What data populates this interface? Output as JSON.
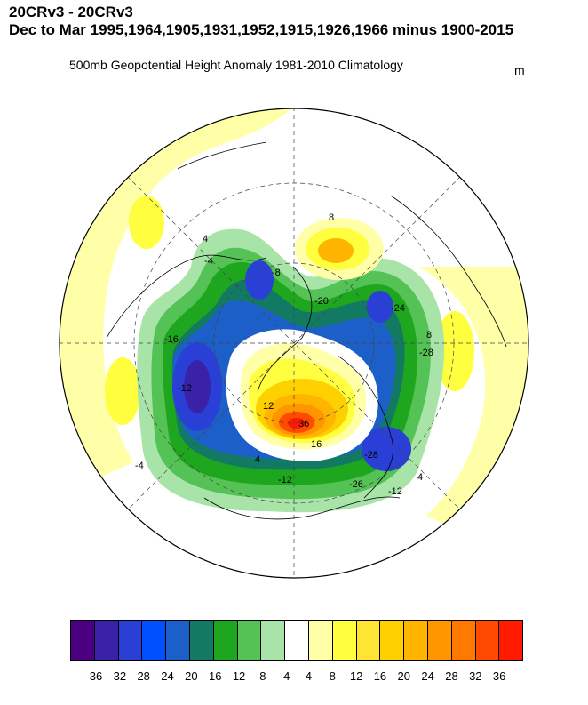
{
  "header": {
    "line1": "20CRv3 - 20CRv3",
    "line2": "Dec to Mar 1995,1964,1905,1931,1952,1915,1926,1966 minus 1900-2015",
    "subtitle": "500mb Geopotential Height Anomaly  1981-2010 Climatology",
    "units": "m"
  },
  "map": {
    "projection": "polar-stereographic-north",
    "contour_labels": [
      "4",
      "-4",
      "8",
      "-8",
      "-12",
      "16",
      "-16",
      "-20",
      "-24",
      "-28",
      "12",
      "36",
      "-12",
      "-4",
      "4",
      "-28",
      "-12",
      "4",
      "-26",
      "8"
    ],
    "max_positive_label": "36",
    "max_negative_label": "-28"
  },
  "colorbar": {
    "colors": [
      "#4b0082",
      "#3a22a8",
      "#2a3fd6",
      "#0050ff",
      "#1c5fc8",
      "#127a63",
      "#1fa61f",
      "#55c255",
      "#a8e4a8",
      "#ffffff",
      "#ffffa8",
      "#ffff40",
      "#ffe433",
      "#ffd000",
      "#ffb400",
      "#ff9600",
      "#ff7800",
      "#ff4a00",
      "#ff1a00"
    ],
    "ticks": [
      "-36",
      "-32",
      "-28",
      "-24",
      "-20",
      "-16",
      "-12",
      "-8",
      "-4",
      "4",
      "8",
      "12",
      "16",
      "20",
      "24",
      "28",
      "32",
      "36"
    ]
  }
}
